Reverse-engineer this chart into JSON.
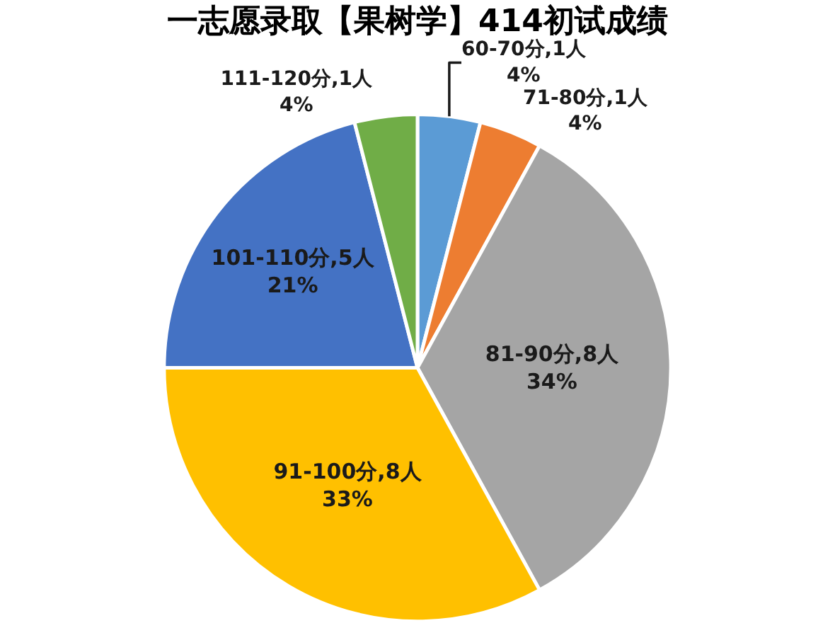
{
  "chart_data": {
    "type": "pie",
    "title": "一志愿录取【果树学】414初试成绩",
    "categories": [
      "60-70分,1人",
      "71-80分,1人",
      "81-90分,8人",
      "91-100分,8人",
      "101-110分,5人",
      "111-120分,1人"
    ],
    "values": [
      4,
      4,
      34,
      33,
      21,
      4
    ],
    "value_labels": [
      "4%",
      "4%",
      "34%",
      "33%",
      "21%",
      "4%"
    ],
    "colors": [
      "#5b9bd5",
      "#ed7d31",
      "#a5a5a5",
      "#ffc000",
      "#4472c4",
      "#70ad47"
    ],
    "legend": false
  }
}
